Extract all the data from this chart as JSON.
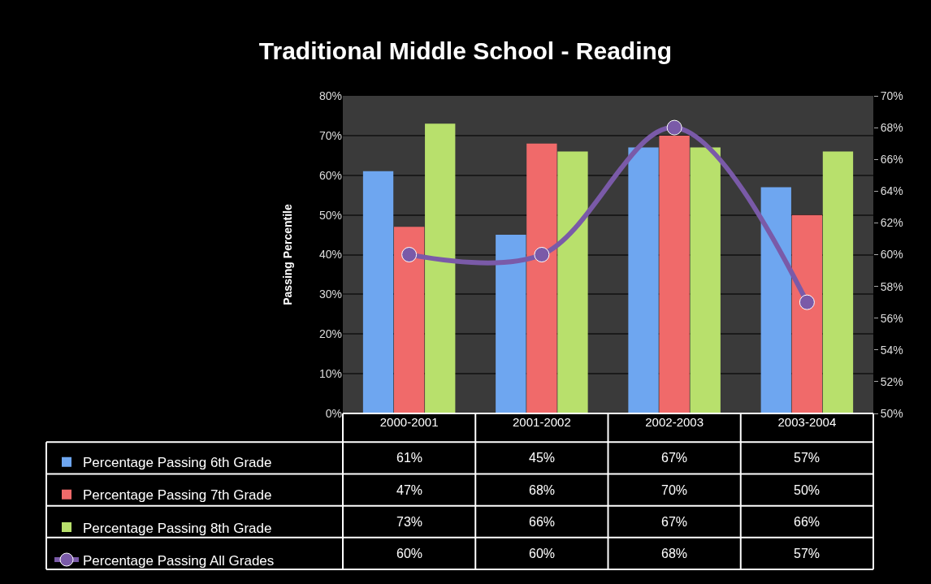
{
  "chart_data": {
    "type": "bar",
    "title": "Traditional Middle School - Reading",
    "ylabel": "Passing Percentile",
    "categories": [
      "2000-2001",
      "2001-2002",
      "2002-2003",
      "2003-2004"
    ],
    "series": [
      {
        "name": "Percentage Passing 6th Grade",
        "color": "#6ea6f0",
        "values": [
          61,
          45,
          67,
          57
        ],
        "value_labels": [
          "61%",
          "45%",
          "67%",
          "57%"
        ]
      },
      {
        "name": "Percentage Passing 7th Grade",
        "color": "#f06a6a",
        "values": [
          47,
          68,
          70,
          50
        ],
        "value_labels": [
          "47%",
          "68%",
          "70%",
          "50%"
        ]
      },
      {
        "name": "Percentage Passing 8th Grade",
        "color": "#b8e06c",
        "values": [
          73,
          66,
          67,
          66
        ],
        "value_labels": [
          "73%",
          "66%",
          "67%",
          "66%"
        ]
      },
      {
        "name": "Percentage Passing All Grades",
        "color": "#7a5aa8",
        "type": "line",
        "axis": "y2",
        "marker": "circle",
        "values": [
          60,
          60,
          68,
          57
        ],
        "value_labels": [
          "60%",
          "60%",
          "68%",
          "57%"
        ]
      }
    ],
    "ylim": [
      0,
      80
    ],
    "yticks": [
      {
        "value": 0,
        "label": "0%"
      },
      {
        "value": 10,
        "label": "10%"
      },
      {
        "value": 20,
        "label": "20%"
      },
      {
        "value": 30,
        "label": "30%"
      },
      {
        "value": 40,
        "label": "40%"
      },
      {
        "value": 50,
        "label": "50%"
      },
      {
        "value": 60,
        "label": "60%"
      },
      {
        "value": 70,
        "label": "70%"
      },
      {
        "value": 80,
        "label": "80%"
      }
    ],
    "y2lim": [
      50,
      70
    ],
    "y2ticks": [
      {
        "value": 50,
        "label": "50%"
      },
      {
        "value": 52,
        "label": "52%"
      },
      {
        "value": 54,
        "label": "54%"
      },
      {
        "value": 56,
        "label": "56%"
      },
      {
        "value": 58,
        "label": "58%"
      },
      {
        "value": 60,
        "label": "60%"
      },
      {
        "value": 62,
        "label": "62%"
      },
      {
        "value": 64,
        "label": "64%"
      },
      {
        "value": 66,
        "label": "66%"
      },
      {
        "value": 68,
        "label": "68%"
      },
      {
        "value": 70,
        "label": "70%"
      }
    ],
    "grid": "y",
    "legend": "bottom left"
  }
}
